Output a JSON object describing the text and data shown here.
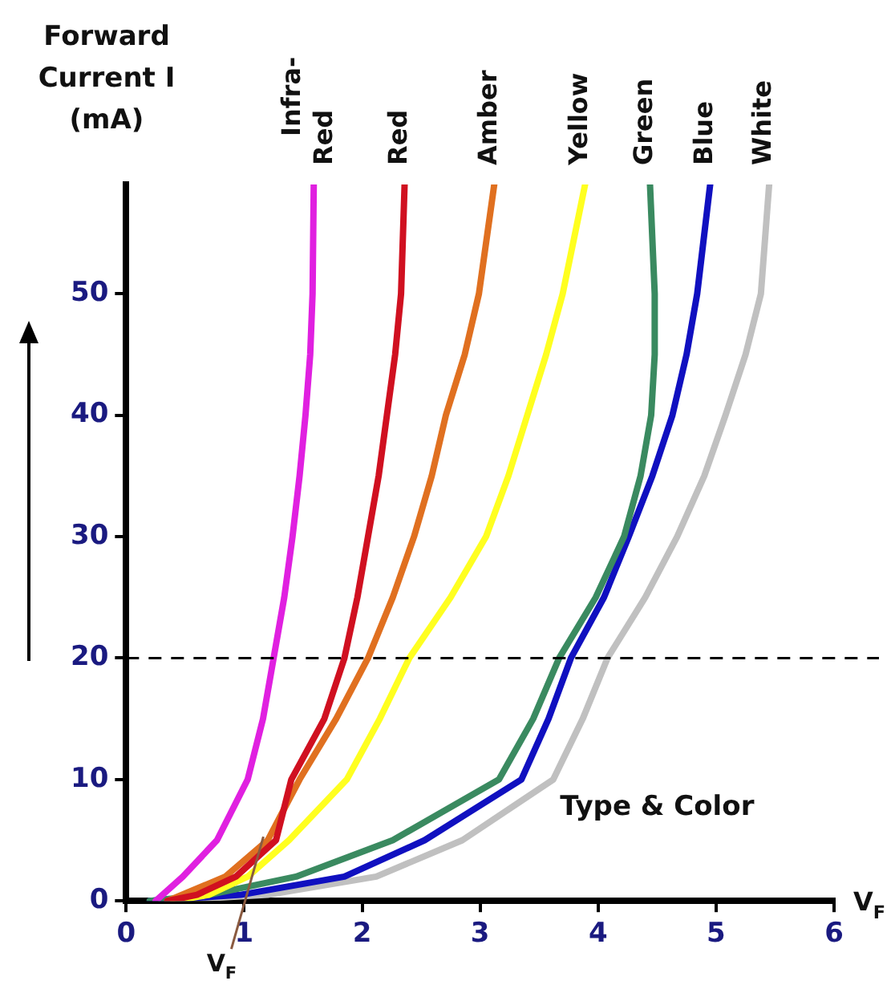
{
  "chart_data": {
    "type": "line",
    "ylabel": "Forward Current I (mA)",
    "xlabel": "V$_{F}$",
    "xlim": [
      0,
      6
    ],
    "xticks": [
      0,
      1,
      2,
      3,
      4,
      5,
      6
    ],
    "ylim": [
      0,
      59
    ],
    "yticks": [
      0,
      10,
      20,
      30,
      40,
      50
    ],
    "grid": false,
    "legend": false,
    "marker": "none",
    "series": [
      {
        "name": "Infra-Red",
        "color": "#e020e0",
        "x": [
          0.25,
          0.48,
          0.77,
          1.03,
          1.16,
          1.25,
          1.34,
          1.41,
          1.47,
          1.52,
          1.56,
          1.58,
          1.59
        ],
        "values": [
          0,
          2,
          5,
          10,
          15,
          20,
          25,
          30,
          35,
          40,
          45,
          50,
          59
        ]
      },
      {
        "name": "Red",
        "color": "#d01020",
        "x": [
          0.35,
          0.6,
          0.93,
          1.27,
          1.4,
          1.68,
          1.85,
          1.96,
          2.05,
          2.14,
          2.21,
          2.28,
          2.33,
          2.36
        ],
        "values": [
          0,
          0.5,
          2,
          5,
          10,
          15,
          20,
          25,
          30,
          35,
          40,
          45,
          50,
          59
        ]
      },
      {
        "name": "Amber",
        "color": "#e07020",
        "x": [
          0.35,
          0.84,
          1.2,
          1.47,
          1.78,
          2.05,
          2.26,
          2.44,
          2.59,
          2.71,
          2.87,
          2.99,
          3.12
        ],
        "values": [
          0,
          2,
          5,
          10,
          15,
          20,
          25,
          30,
          35,
          40,
          45,
          50,
          59
        ]
      },
      {
        "name": "Yellow",
        "color": "#ffff20",
        "x": [
          0.4,
          0.7,
          1.03,
          1.38,
          1.87,
          2.15,
          2.4,
          2.75,
          3.05,
          3.24,
          3.4,
          3.56,
          3.7,
          3.89
        ],
        "values": [
          0,
          0.5,
          2,
          5,
          10,
          15,
          20,
          25,
          30,
          35,
          40,
          45,
          50,
          59
        ]
      },
      {
        "name": "Green",
        "color": "#3a8a60",
        "x": [
          0.2,
          0.7,
          1.44,
          2.26,
          3.16,
          3.45,
          3.67,
          3.98,
          4.22,
          4.36,
          4.45,
          4.48,
          4.48,
          4.44
        ],
        "values": [
          0,
          0.5,
          2,
          5,
          10,
          15,
          20,
          25,
          30,
          35,
          40,
          45,
          50,
          59
        ]
      },
      {
        "name": "Blue",
        "color": "#1010c0",
        "x": [
          0.2,
          0.97,
          1.85,
          2.53,
          3.35,
          3.58,
          3.77,
          4.05,
          4.26,
          4.46,
          4.63,
          4.75,
          4.84,
          4.95
        ],
        "values": [
          0,
          0.5,
          2,
          5,
          10,
          15,
          20,
          25,
          30,
          35,
          40,
          45,
          50,
          59
        ]
      },
      {
        "name": "White",
        "color": "#c0c0c0",
        "x": [
          0.3,
          1.2,
          2.12,
          2.85,
          3.62,
          3.87,
          4.08,
          4.4,
          4.67,
          4.9,
          5.08,
          5.25,
          5.38,
          5.45
        ],
        "values": [
          0,
          0.5,
          2,
          5,
          10,
          15,
          20,
          25,
          30,
          35,
          40,
          45,
          50,
          59
        ]
      }
    ],
    "ref_lines": [
      {
        "axis": "y",
        "value": 20,
        "color": "#000000",
        "line_style": "dashed"
      }
    ],
    "annotations": [
      {
        "text": "V$_{F}$",
        "x": 1,
        "y": 0
      },
      "Type & Color"
    ]
  }
}
